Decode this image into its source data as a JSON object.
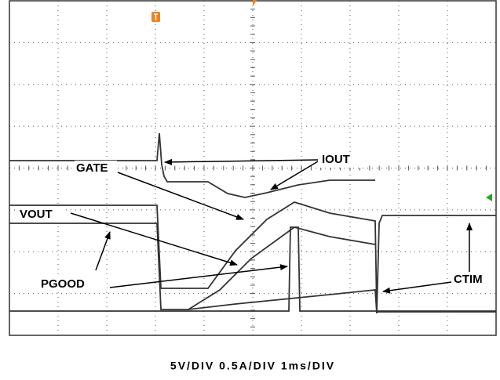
{
  "labels": {
    "iout": "IOUT",
    "gate": "GATE",
    "vout": "VOUT",
    "pgood": "PGOOD",
    "ctim": "CTIM"
  },
  "caption": "5V/DIV 0.5A/DIV 1ms/DIV"
}
